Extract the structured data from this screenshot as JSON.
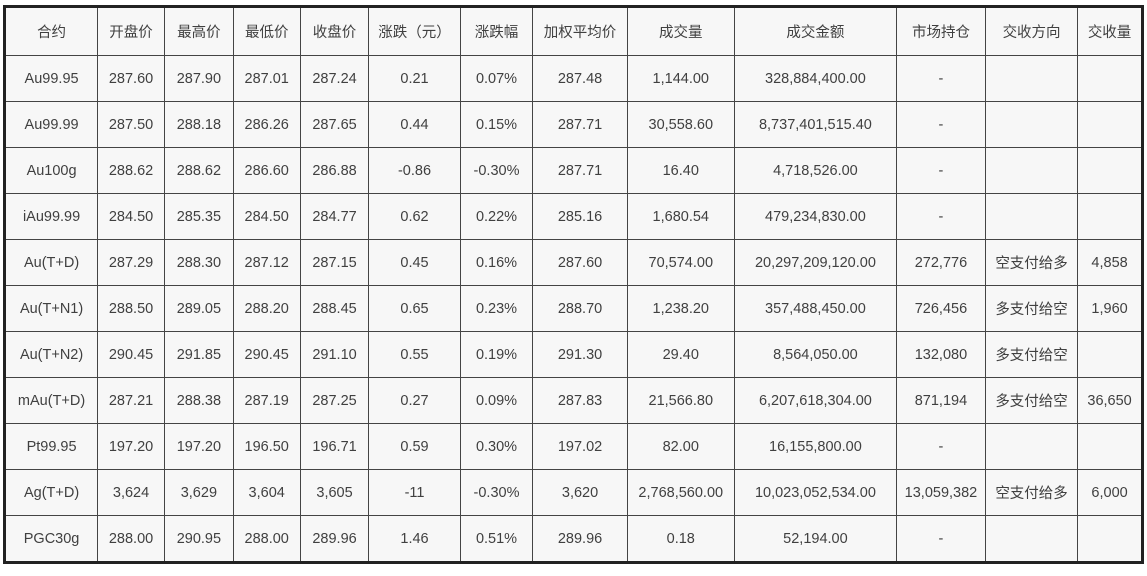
{
  "chart_data": {
    "type": "table",
    "columns": [
      "合约",
      "开盘价",
      "最高价",
      "最低价",
      "收盘价",
      "涨跌（元）",
      "涨跌幅",
      "加权平均价",
      "成交量",
      "成交金额",
      "市场持仓",
      "交收方向",
      "交收量"
    ],
    "rows": [
      [
        "Au99.95",
        "287.60",
        "287.90",
        "287.01",
        "287.24",
        "0.21",
        "0.07%",
        "287.48",
        "1,144.00",
        "328,884,400.00",
        "-",
        "",
        ""
      ],
      [
        "Au99.99",
        "287.50",
        "288.18",
        "286.26",
        "287.65",
        "0.44",
        "0.15%",
        "287.71",
        "30,558.60",
        "8,737,401,515.40",
        "-",
        "",
        ""
      ],
      [
        "Au100g",
        "288.62",
        "288.62",
        "286.60",
        "286.88",
        "-0.86",
        "-0.30%",
        "287.71",
        "16.40",
        "4,718,526.00",
        "-",
        "",
        ""
      ],
      [
        "iAu99.99",
        "284.50",
        "285.35",
        "284.50",
        "284.77",
        "0.62",
        "0.22%",
        "285.16",
        "1,680.54",
        "479,234,830.00",
        "-",
        "",
        ""
      ],
      [
        "Au(T+D)",
        "287.29",
        "288.30",
        "287.12",
        "287.15",
        "0.45",
        "0.16%",
        "287.60",
        "70,574.00",
        "20,297,209,120.00",
        "272,776",
        "空支付给多",
        "4,858"
      ],
      [
        "Au(T+N1)",
        "288.50",
        "289.05",
        "288.20",
        "288.45",
        "0.65",
        "0.23%",
        "288.70",
        "1,238.20",
        "357,488,450.00",
        "726,456",
        "多支付给空",
        "1,960"
      ],
      [
        "Au(T+N2)",
        "290.45",
        "291.85",
        "290.45",
        "291.10",
        "0.55",
        "0.19%",
        "291.30",
        "29.40",
        "8,564,050.00",
        "132,080",
        "多支付给空",
        ""
      ],
      [
        "mAu(T+D)",
        "287.21",
        "288.38",
        "287.19",
        "287.25",
        "0.27",
        "0.09%",
        "287.83",
        "21,566.80",
        "6,207,618,304.00",
        "871,194",
        "多支付给空",
        "36,650"
      ],
      [
        "Pt99.95",
        "197.20",
        "197.20",
        "196.50",
        "196.71",
        "0.59",
        "0.30%",
        "197.02",
        "82.00",
        "16,155,800.00",
        "-",
        "",
        ""
      ],
      [
        "Ag(T+D)",
        "3,624",
        "3,629",
        "3,604",
        "3,605",
        "-11",
        "-0.30%",
        "3,620",
        "2,768,560.00",
        "10,023,052,534.00",
        "13,059,382",
        "空支付给多",
        "6,000"
      ],
      [
        "PGC30g",
        "288.00",
        "290.95",
        "288.00",
        "289.96",
        "1.46",
        "0.51%",
        "289.96",
        "0.18",
        "52,194.00",
        "-",
        "",
        ""
      ]
    ]
  },
  "colors": {
    "outer_border": "#222222",
    "grid_line": "#444444",
    "cell_background": "#f7f7f7",
    "text": "#404040",
    "page_background": "#ffffff"
  }
}
